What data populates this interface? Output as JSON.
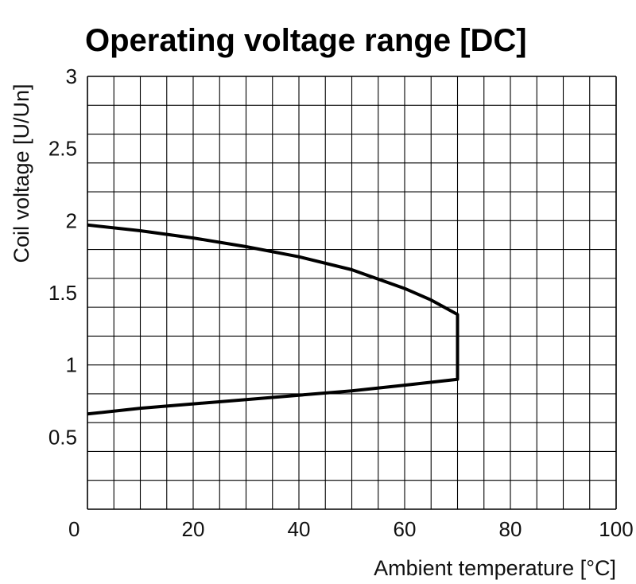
{
  "chart_data": {
    "type": "line",
    "title": "Operating voltage range [DC]",
    "xlabel": "Ambient temperature [°C]",
    "ylabel": "Coil voltage [U/Un]",
    "xlim": [
      0,
      100
    ],
    "ylim": [
      0,
      3
    ],
    "x_ticks": [
      0,
      20,
      40,
      60,
      80,
      100
    ],
    "x_tick_labels": [
      "0",
      "20",
      "40",
      "60",
      "80",
      "100"
    ],
    "y_ticks": [
      0.5,
      1,
      1.5,
      2,
      2.5,
      3
    ],
    "y_tick_labels": [
      "0.5",
      "1",
      "1.5",
      "2",
      "2.5",
      "3"
    ],
    "grid": true,
    "grid_x_step": 5,
    "grid_y_step": 0.2,
    "line_color": "#000000",
    "grid_color": "#000000",
    "series": [
      {
        "x": [
          0,
          10,
          20,
          30,
          40,
          50,
          60,
          65,
          70,
          70,
          60,
          50,
          40,
          30,
          20,
          10,
          0
        ],
        "y": [
          1.97,
          1.93,
          1.88,
          1.82,
          1.75,
          1.66,
          1.53,
          1.45,
          1.35,
          0.9,
          0.86,
          0.82,
          0.79,
          0.76,
          0.73,
          0.7,
          0.66
        ]
      }
    ]
  }
}
